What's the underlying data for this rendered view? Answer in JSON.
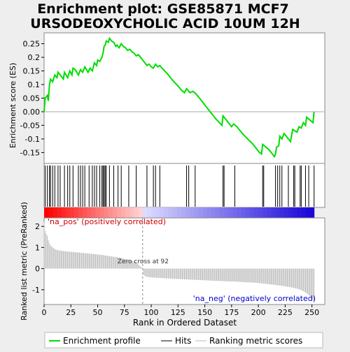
{
  "chart_data": {
    "type": "line",
    "title_line1": "Enrichment plot: GSE85871 MCF7",
    "title_line2": "URSODEOXYCHOLIC ACID 10UM 12H",
    "ylabel_top": "Enrichment score (ES)",
    "ylabel_bottom": "Ranked list metric (PreRanked)",
    "xlabel": "Rank in Ordered Dataset",
    "x_range": [
      0,
      262
    ],
    "es_ylim": [
      -0.19,
      0.29
    ],
    "es_yticks": [
      "0.25",
      "0.2",
      "0.15",
      "0.1",
      "0.05",
      "0.00",
      "-0.05",
      "-0.1",
      "-0.15"
    ],
    "metric_ylim": [
      -1.7,
      2.4
    ],
    "metric_yticks": [
      "2",
      "1",
      "0",
      "-1"
    ],
    "xticks": [
      "0",
      "25",
      "50",
      "75",
      "100",
      "125",
      "150",
      "175",
      "200",
      "225",
      "250"
    ],
    "pos_label": "'na_pos' (positively correlated)",
    "neg_label": "'na_neg' (negatively correlated)",
    "zero_cross_label": "Zero cross at 92",
    "zero_cross": 92,
    "n_genes": 252,
    "es_curve": [
      [
        0,
        0.0
      ],
      [
        1,
        0.05
      ],
      [
        3,
        0.06
      ],
      [
        4,
        0.04
      ],
      [
        5,
        0.1
      ],
      [
        6,
        0.12
      ],
      [
        8,
        0.11
      ],
      [
        10,
        0.135
      ],
      [
        12,
        0.125
      ],
      [
        13,
        0.145
      ],
      [
        15,
        0.135
      ],
      [
        18,
        0.12
      ],
      [
        19,
        0.145
      ],
      [
        22,
        0.125
      ],
      [
        24,
        0.15
      ],
      [
        26,
        0.135
      ],
      [
        27,
        0.16
      ],
      [
        29,
        0.155
      ],
      [
        32,
        0.135
      ],
      [
        34,
        0.155
      ],
      [
        36,
        0.145
      ],
      [
        38,
        0.165
      ],
      [
        41,
        0.145
      ],
      [
        43,
        0.16
      ],
      [
        45,
        0.15
      ],
      [
        47,
        0.18
      ],
      [
        49,
        0.17
      ],
      [
        50,
        0.19
      ],
      [
        52,
        0.185
      ],
      [
        54,
        0.2
      ],
      [
        55,
        0.215
      ],
      [
        56,
        0.24
      ],
      [
        57,
        0.245
      ],
      [
        58,
        0.26
      ],
      [
        60,
        0.255
      ],
      [
        61,
        0.27
      ],
      [
        63,
        0.26
      ],
      [
        65,
        0.255
      ],
      [
        67,
        0.24
      ],
      [
        68,
        0.245
      ],
      [
        70,
        0.235
      ],
      [
        72,
        0.25
      ],
      [
        74,
        0.24
      ],
      [
        76,
        0.235
      ],
      [
        78,
        0.225
      ],
      [
        80,
        0.23
      ],
      [
        82,
        0.22
      ],
      [
        84,
        0.215
      ],
      [
        86,
        0.205
      ],
      [
        88,
        0.21
      ],
      [
        92,
        0.19
      ],
      [
        96,
        0.17
      ],
      [
        98,
        0.175
      ],
      [
        100,
        0.165
      ],
      [
        102,
        0.16
      ],
      [
        104,
        0.175
      ],
      [
        106,
        0.165
      ],
      [
        108,
        0.17
      ],
      [
        110,
        0.16
      ],
      [
        115,
        0.14
      ],
      [
        120,
        0.115
      ],
      [
        125,
        0.095
      ],
      [
        128,
        0.08
      ],
      [
        131,
        0.07
      ],
      [
        133,
        0.085
      ],
      [
        136,
        0.07
      ],
      [
        139,
        0.075
      ],
      [
        142,
        0.065
      ],
      [
        146,
        0.045
      ],
      [
        150,
        0.025
      ],
      [
        155,
        0.0
      ],
      [
        160,
        -0.025
      ],
      [
        166,
        -0.05
      ],
      [
        167,
        -0.015
      ],
      [
        170,
        -0.03
      ],
      [
        175,
        -0.055
      ],
      [
        177,
        -0.045
      ],
      [
        180,
        -0.055
      ],
      [
        185,
        -0.08
      ],
      [
        190,
        -0.1
      ],
      [
        195,
        -0.12
      ],
      [
        201,
        -0.15
      ],
      [
        203,
        -0.155
      ],
      [
        204,
        -0.12
      ],
      [
        207,
        -0.13
      ],
      [
        210,
        -0.14
      ],
      [
        213,
        -0.155
      ],
      [
        215,
        -0.165
      ],
      [
        216,
        -0.155
      ],
      [
        217,
        -0.13
      ],
      [
        219,
        -0.125
      ],
      [
        220,
        -0.09
      ],
      [
        222,
        -0.1
      ],
      [
        224,
        -0.08
      ],
      [
        226,
        -0.09
      ],
      [
        228,
        -0.1
      ],
      [
        230,
        -0.11
      ],
      [
        232,
        -0.065
      ],
      [
        236,
        -0.075
      ],
      [
        238,
        -0.055
      ],
      [
        240,
        -0.06
      ],
      [
        242,
        -0.04
      ],
      [
        244,
        -0.05
      ],
      [
        245,
        -0.02
      ],
      [
        248,
        -0.03
      ],
      [
        251,
        -0.04
      ],
      [
        252,
        0.0
      ]
    ],
    "hits": [
      1,
      3,
      5,
      6,
      8,
      10,
      13,
      15,
      19,
      22,
      24,
      27,
      32,
      34,
      36,
      38,
      42,
      45,
      47,
      49,
      52,
      54,
      55,
      56,
      57,
      58,
      61,
      65,
      69,
      72,
      79,
      86,
      96,
      102,
      104,
      108,
      133,
      135,
      141,
      167,
      168,
      178,
      204,
      205,
      216,
      218,
      220,
      222,
      228,
      233,
      234,
      239,
      240,
      244,
      247,
      252
    ],
    "metric_profile": [
      [
        0,
        2.2
      ],
      [
        1,
        1.8
      ],
      [
        2,
        1.65
      ],
      [
        3,
        1.55
      ],
      [
        4,
        1.35
      ],
      [
        5,
        1.2
      ],
      [
        6,
        1.1
      ],
      [
        8,
        1.0
      ],
      [
        10,
        0.93
      ],
      [
        12,
        0.88
      ],
      [
        15,
        0.85
      ],
      [
        20,
        0.82
      ],
      [
        30,
        0.77
      ],
      [
        40,
        0.72
      ],
      [
        50,
        0.67
      ],
      [
        60,
        0.6
      ],
      [
        70,
        0.52
      ],
      [
        80,
        0.4
      ],
      [
        85,
        0.32
      ],
      [
        90,
        0.1
      ],
      [
        92,
        0.0
      ],
      [
        93,
        -0.3
      ],
      [
        95,
        -0.38
      ],
      [
        100,
        -0.42
      ],
      [
        120,
        -0.48
      ],
      [
        140,
        -0.53
      ],
      [
        160,
        -0.58
      ],
      [
        180,
        -0.62
      ],
      [
        200,
        -0.68
      ],
      [
        210,
        -0.74
      ],
      [
        220,
        -0.8
      ],
      [
        230,
        -0.88
      ],
      [
        236,
        -0.95
      ],
      [
        240,
        -1.02
      ],
      [
        243,
        -1.1
      ],
      [
        246,
        -1.2
      ],
      [
        248,
        -1.3
      ],
      [
        250,
        -1.45
      ],
      [
        252,
        -1.55
      ]
    ]
  },
  "legend": {
    "entries": [
      "Enrichment profile",
      "Hits",
      "Ranking metric scores"
    ],
    "colors": {
      "profile": "#00dd00",
      "hits": "#000000",
      "metric": "#bbbbbb"
    }
  },
  "colors": {
    "pos_label": "#cc0000",
    "neg_label": "#0000cc"
  }
}
